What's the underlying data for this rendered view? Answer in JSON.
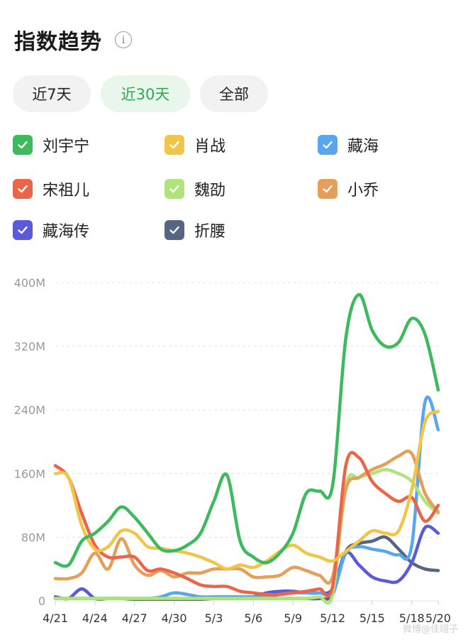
{
  "header": {
    "title": "指数趋势",
    "info_icon": "info-icon"
  },
  "tabs": [
    {
      "label": "近7天",
      "active": false
    },
    {
      "label": "近30天",
      "active": true
    },
    {
      "label": "全部",
      "active": false
    }
  ],
  "legend": [
    {
      "label": "刘宇宁",
      "color": "#3dba5c",
      "checked": true
    },
    {
      "label": "肖战",
      "color": "#f0c64a",
      "checked": true
    },
    {
      "label": "藏海",
      "color": "#5aa6ee",
      "checked": true
    },
    {
      "label": "宋祖儿",
      "color": "#ec6549",
      "checked": true
    },
    {
      "label": "魏劭",
      "color": "#b0e37c",
      "checked": true
    },
    {
      "label": "小乔",
      "color": "#e59f59",
      "checked": true
    },
    {
      "label": "藏海传",
      "color": "#5b5ad9",
      "checked": true
    },
    {
      "label": "折腰",
      "color": "#586582",
      "checked": true
    }
  ],
  "chart_data": {
    "type": "line",
    "x": [
      "4/21",
      "4/22",
      "4/23",
      "4/24",
      "4/25",
      "4/26",
      "4/27",
      "4/28",
      "4/29",
      "4/30",
      "5/1",
      "5/2",
      "5/3",
      "5/4",
      "5/5",
      "5/6",
      "5/7",
      "5/8",
      "5/9",
      "5/10",
      "5/11",
      "5/12",
      "5/13",
      "5/14",
      "5/15",
      "5/16",
      "5/17",
      "5/18",
      "5/19",
      "5/20"
    ],
    "x_tick_labels": [
      "4/21",
      "4/24",
      "4/27",
      "4/30",
      "5/3",
      "5/6",
      "5/9",
      "5/12",
      "5/15",
      "5/18",
      "5/20"
    ],
    "y_ticks": [
      "0",
      "80M",
      "160M",
      "240M",
      "320M",
      "400M"
    ],
    "ylim": [
      0,
      400
    ],
    "y_unit": "M",
    "grid": true,
    "series": [
      {
        "name": "刘宇宁",
        "color": "#3dba5c",
        "values": [
          48,
          45,
          75,
          85,
          100,
          118,
          105,
          85,
          65,
          63,
          70,
          85,
          125,
          158,
          75,
          55,
          48,
          60,
          85,
          135,
          138,
          145,
          330,
          385,
          340,
          320,
          325,
          355,
          335,
          265
        ]
      },
      {
        "name": "肖战",
        "color": "#f0c64a",
        "values": [
          160,
          155,
          95,
          65,
          68,
          88,
          85,
          68,
          66,
          63,
          60,
          55,
          48,
          40,
          45,
          42,
          50,
          62,
          70,
          60,
          55,
          50,
          62,
          75,
          88,
          85,
          88,
          140,
          225,
          238
        ]
      },
      {
        "name": "藏海",
        "color": "#5aa6ee",
        "values": [
          3,
          3,
          3,
          3,
          3,
          3,
          3,
          3,
          5,
          10,
          8,
          5,
          5,
          5,
          5,
          5,
          5,
          8,
          10,
          10,
          10,
          10,
          60,
          68,
          65,
          62,
          58,
          70,
          250,
          215
        ]
      },
      {
        "name": "宋祖儿",
        "color": "#ec6549",
        "values": [
          170,
          155,
          110,
          70,
          55,
          55,
          55,
          38,
          40,
          35,
          28,
          20,
          18,
          18,
          12,
          10,
          8,
          8,
          10,
          12,
          15,
          18,
          170,
          180,
          150,
          135,
          125,
          130,
          100,
          120
        ]
      },
      {
        "name": "魏劭",
        "color": "#b0e37c",
        "values": [
          3,
          3,
          3,
          3,
          3,
          3,
          3,
          3,
          3,
          3,
          3,
          3,
          3,
          3,
          3,
          3,
          3,
          3,
          3,
          3,
          5,
          8,
          145,
          155,
          160,
          165,
          160,
          150,
          125,
          110
        ]
      },
      {
        "name": "小乔",
        "color": "#e59f59",
        "values": [
          28,
          28,
          35,
          60,
          40,
          78,
          45,
          32,
          38,
          30,
          35,
          35,
          40,
          40,
          40,
          30,
          30,
          32,
          42,
          38,
          32,
          30,
          140,
          155,
          165,
          172,
          182,
          185,
          135,
          112
        ]
      },
      {
        "name": "藏海传",
        "color": "#5b5ad9",
        "values": [
          5,
          3,
          15,
          3,
          3,
          3,
          2,
          2,
          2,
          2,
          2,
          2,
          3,
          3,
          3,
          5,
          10,
          12,
          12,
          10,
          10,
          15,
          60,
          45,
          30,
          25,
          25,
          48,
          92,
          85
        ]
      },
      {
        "name": "折腰",
        "color": "#586582",
        "values": [
          3,
          3,
          3,
          3,
          3,
          3,
          3,
          3,
          3,
          3,
          3,
          3,
          3,
          3,
          3,
          3,
          3,
          3,
          3,
          3,
          3,
          8,
          62,
          72,
          75,
          80,
          65,
          48,
          40,
          38
        ]
      }
    ]
  },
  "watermark": "微博@佳翊子"
}
